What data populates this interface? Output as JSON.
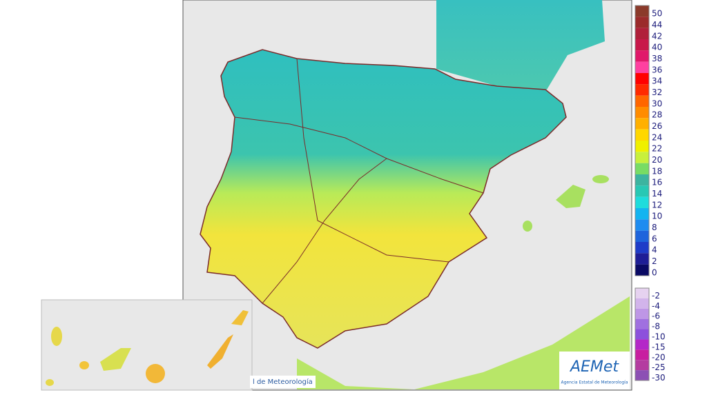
{
  "credits": {
    "footer_text": "l de Meteorología",
    "logo": "AEMet",
    "logo_subtitle": "Agencia Estatal de Meteorología"
  },
  "legend": {
    "warm": [
      {
        "label": "50",
        "color": "#8b3a2a"
      },
      {
        "label": "44",
        "color": "#9b2b2b"
      },
      {
        "label": "42",
        "color": "#b0203a"
      },
      {
        "label": "40",
        "color": "#c8184a"
      },
      {
        "label": "38",
        "color": "#e0186a"
      },
      {
        "label": "36",
        "color": "#ff40a0"
      },
      {
        "label": "34",
        "color": "#ff0000"
      },
      {
        "label": "32",
        "color": "#ff2a00"
      },
      {
        "label": "30",
        "color": "#ff6600"
      },
      {
        "label": "28",
        "color": "#ff8c00"
      },
      {
        "label": "26",
        "color": "#ffb000"
      },
      {
        "label": "24",
        "color": "#ffd700"
      },
      {
        "label": "22",
        "color": "#f0f000"
      },
      {
        "label": "20",
        "color": "#c8f03c"
      },
      {
        "label": "18",
        "color": "#78dc64"
      },
      {
        "label": "16",
        "color": "#3cb4a0"
      },
      {
        "label": "14",
        "color": "#28c8b4"
      },
      {
        "label": "12",
        "color": "#1edcdc"
      },
      {
        "label": "10",
        "color": "#14b4f0"
      },
      {
        "label": "8",
        "color": "#1e8cf0"
      },
      {
        "label": "6",
        "color": "#1e64dc"
      },
      {
        "label": "4",
        "color": "#1e3cc8"
      },
      {
        "label": "2",
        "color": "#1e1e96"
      },
      {
        "label": "0",
        "color": "#0a0a64"
      }
    ],
    "cold": [
      {
        "label": "-2",
        "color": "#e6d2f0"
      },
      {
        "label": "-4",
        "color": "#d2b4eb"
      },
      {
        "label": "-6",
        "color": "#be96e6"
      },
      {
        "label": "-8",
        "color": "#a070e0"
      },
      {
        "label": "-10",
        "color": "#8c50dc"
      },
      {
        "label": "-15",
        "color": "#b428c8"
      },
      {
        "label": "-20",
        "color": "#c81ea0"
      },
      {
        "label": "-25",
        "color": "#b43ca0"
      },
      {
        "label": "-30",
        "color": "#8c50b4"
      }
    ]
  }
}
